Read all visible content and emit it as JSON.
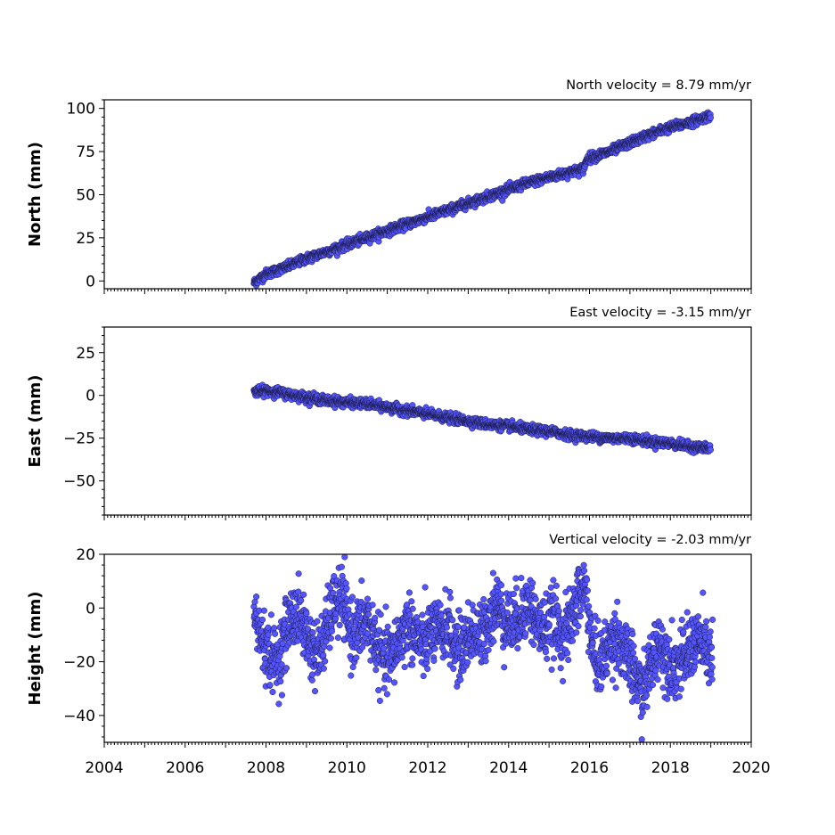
{
  "chart_data": [
    {
      "type": "scatter",
      "title": "North velocity = 8.79 mm/yr",
      "ylabel": "North (mm)",
      "xlabel": "",
      "xlim": [
        2004,
        2020
      ],
      "ylim": [
        -4.5,
        105
      ],
      "yticks": [
        0,
        25,
        50,
        75,
        100
      ],
      "x_tick_labels_visible": false,
      "marker_color": "#5555ff",
      "edge_color": "#1a1a40",
      "series": [
        {
          "x": [
            2007.7,
            2008.0,
            2008.5,
            2009.0,
            2009.5,
            2010.0,
            2010.5,
            2011.0,
            2011.5,
            2012.0,
            2012.5,
            2013.0,
            2013.5,
            2014.0,
            2014.5,
            2015.0,
            2015.5,
            2015.85,
            2015.95,
            2016.5,
            2017.0,
            2017.5,
            2018.0,
            2018.5,
            2019.0
          ],
          "y": [
            -1,
            4,
            8,
            13,
            17,
            21,
            25,
            29,
            33,
            37,
            41,
            45,
            49,
            53,
            57,
            60,
            63,
            65,
            71,
            75,
            80,
            85,
            89,
            92,
            96
          ]
        }
      ]
    },
    {
      "type": "scatter",
      "title": "East velocity = -3.15 mm/yr",
      "ylabel": "East (mm)",
      "xlabel": "",
      "xlim": [
        2004,
        2020
      ],
      "ylim": [
        -70,
        40
      ],
      "yticks": [
        25,
        0,
        -25,
        -50
      ],
      "x_tick_labels_visible": false,
      "marker_color": "#5555ff",
      "edge_color": "#1a1a40",
      "series": [
        {
          "x": [
            2007.7,
            2008.0,
            2008.5,
            2009.0,
            2009.5,
            2010.0,
            2010.5,
            2011.0,
            2011.5,
            2012.0,
            2012.5,
            2013.0,
            2013.5,
            2014.0,
            2014.5,
            2015.0,
            2015.5,
            2016.0,
            2016.5,
            2017.0,
            2017.5,
            2018.0,
            2018.5,
            2019.0
          ],
          "y": [
            2,
            3,
            1,
            -1,
            -3,
            -4,
            -5,
            -7,
            -9,
            -11,
            -13,
            -15,
            -17,
            -18,
            -20,
            -21,
            -23,
            -24,
            -25,
            -25,
            -27,
            -28,
            -30,
            -31
          ]
        }
      ]
    },
    {
      "type": "scatter",
      "title": "Vertical velocity = -2.03 mm/yr",
      "ylabel": "Height (mm)",
      "xlabel": "",
      "xlim": [
        2004,
        2020
      ],
      "ylim": [
        -50,
        20
      ],
      "yticks": [
        20,
        0,
        -20,
        -40
      ],
      "xticks": [
        2004,
        2006,
        2008,
        2010,
        2012,
        2014,
        2016,
        2018,
        2020
      ],
      "x_tick_labels_visible": true,
      "marker_color": "#5555ff",
      "edge_color": "#1a1a40",
      "series": [
        {
          "x": [
            2007.7,
            2007.9,
            2008.1,
            2008.3,
            2008.5,
            2008.7,
            2008.9,
            2009.1,
            2009.3,
            2009.5,
            2009.7,
            2009.9,
            2010.1,
            2010.3,
            2010.5,
            2010.7,
            2010.9,
            2011.1,
            2011.3,
            2011.5,
            2011.7,
            2011.9,
            2012.1,
            2012.3,
            2012.5,
            2012.7,
            2012.9,
            2013.1,
            2013.3,
            2013.5,
            2013.7,
            2013.9,
            2014.1,
            2014.3,
            2014.5,
            2014.7,
            2014.9,
            2015.1,
            2015.3,
            2015.5,
            2015.7,
            2015.9,
            2016.1,
            2016.3,
            2016.5,
            2016.7,
            2016.9,
            2017.1,
            2017.3,
            2017.5,
            2017.7,
            2017.9,
            2018.1,
            2018.3,
            2018.5,
            2018.7,
            2018.9,
            2019.05
          ],
          "y": [
            -2,
            -12,
            -18,
            -20,
            -8,
            -2,
            -5,
            -14,
            -18,
            -8,
            2,
            3,
            -10,
            -8,
            -4,
            -12,
            -20,
            -18,
            -12,
            -6,
            -10,
            -15,
            -8,
            -10,
            -6,
            -16,
            -14,
            -8,
            -12,
            -4,
            2,
            -4,
            -6,
            -2,
            2,
            -6,
            -8,
            -4,
            -10,
            -8,
            4,
            8,
            -18,
            -20,
            -14,
            -10,
            -18,
            -24,
            -32,
            -22,
            -12,
            -18,
            -22,
            -20,
            -14,
            -12,
            -16,
            -20
          ]
        }
      ]
    }
  ]
}
